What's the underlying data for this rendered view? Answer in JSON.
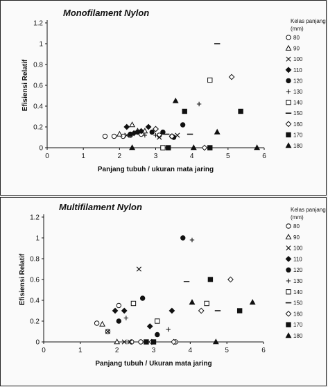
{
  "chart_data": [
    {
      "type": "scatter",
      "title": "Monofilament Nylon",
      "xlabel": "Panjang tubuh / ukuran mata jaring",
      "ylabel": "Efisiensi Relatif",
      "xlim": [
        0,
        6
      ],
      "ylim": [
        0,
        1.2
      ],
      "xticks": [
        "0",
        "1",
        "2",
        "3",
        "4",
        "5",
        "6"
      ],
      "yticks": [
        "0",
        "0.2",
        "0.4",
        "0.6",
        "0.8",
        "1",
        "1.2"
      ],
      "legend_title": [
        "Kelas panjang",
        "(mm)"
      ],
      "legend_position": "right",
      "grid": false,
      "series": [
        {
          "name": "80",
          "marker": "circle-open",
          "points": [
            [
              1.6,
              0.11
            ],
            [
              1.85,
              0.11
            ],
            [
              2.1,
              0.11
            ],
            [
              2.3,
              0.12
            ],
            [
              2.6,
              0.13
            ],
            [
              3.1,
              0.12
            ],
            [
              3.45,
              0.11
            ]
          ]
        },
        {
          "name": "90",
          "marker": "triangle-open",
          "points": [
            [
              2.0,
              0.13
            ],
            [
              2.35,
              0.22
            ],
            [
              2.5,
              0.16
            ],
            [
              2.7,
              0.16
            ]
          ]
        },
        {
          "name": "100",
          "marker": "x",
          "points": [
            [
              2.2,
              0.12
            ],
            [
              3.1,
              0.1
            ],
            [
              3.6,
              0.12
            ]
          ]
        },
        {
          "name": "110",
          "marker": "diamond-filled",
          "points": [
            [
              2.2,
              0.2
            ],
            [
              2.4,
              0.14
            ],
            [
              2.6,
              0.16
            ],
            [
              2.8,
              0.2
            ],
            [
              3.0,
              0.18
            ]
          ]
        },
        {
          "name": "120",
          "marker": "circle-filled",
          "points": [
            [
              2.3,
              0.13
            ],
            [
              2.5,
              0.15
            ],
            [
              2.9,
              0.15
            ],
            [
              3.2,
              0.15
            ],
            [
              3.5,
              0.1
            ],
            [
              3.75,
              0.22
            ]
          ]
        },
        {
          "name": "130",
          "marker": "plus",
          "points": [
            [
              2.7,
              0.12
            ],
            [
              3.0,
              0.12
            ],
            [
              4.2,
              0.42
            ]
          ]
        },
        {
          "name": "140",
          "marker": "square-open",
          "points": [
            [
              3.2,
              0.0
            ],
            [
              4.5,
              0.65
            ]
          ]
        },
        {
          "name": "150",
          "marker": "dash",
          "points": [
            [
              3.3,
              0.13
            ],
            [
              3.95,
              0.13
            ],
            [
              4.7,
              1.0
            ]
          ]
        },
        {
          "name": "160",
          "marker": "diamond-open",
          "points": [
            [
              3.0,
              0.18
            ],
            [
              3.45,
              0.11
            ],
            [
              4.35,
              0.0
            ],
            [
              5.1,
              0.68
            ]
          ]
        },
        {
          "name": "170",
          "marker": "square-filled",
          "points": [
            [
              3.35,
              0.0
            ],
            [
              3.8,
              0.35
            ],
            [
              4.5,
              0.0
            ],
            [
              5.35,
              0.35
            ]
          ]
        },
        {
          "name": "180",
          "marker": "triangle-filled",
          "points": [
            [
              2.35,
              0.0
            ],
            [
              3.55,
              0.45
            ],
            [
              4.05,
              0.0
            ],
            [
              4.7,
              0.15
            ],
            [
              5.8,
              0.0
            ]
          ]
        }
      ]
    },
    {
      "type": "scatter",
      "title": "Multifilament Nylon",
      "xlabel": "Panjang tubuh / Ukuran mata jaring",
      "ylabel": "Efisiensi Relatif",
      "xlim": [
        0,
        6
      ],
      "ylim": [
        0,
        1.2
      ],
      "xticks": [
        "0",
        "1",
        "2",
        "3",
        "4",
        "5",
        "6"
      ],
      "yticks": [
        "0",
        "0.2",
        "0.4",
        "0.6",
        "0.8",
        "1",
        "1.2"
      ],
      "legend_title": [
        "Kelas panjang",
        "(mm)"
      ],
      "legend_position": "right",
      "grid": false,
      "series": [
        {
          "name": "80",
          "marker": "circle-open",
          "points": [
            [
              1.45,
              0.18
            ],
            [
              1.75,
              0.1
            ],
            [
              2.05,
              0.35
            ],
            [
              2.4,
              0.0
            ],
            [
              2.65,
              0.0
            ],
            [
              3.6,
              0.0
            ]
          ]
        },
        {
          "name": "90",
          "marker": "triangle-open",
          "points": [
            [
              1.6,
              0.17
            ],
            [
              2.0,
              0.0
            ]
          ]
        },
        {
          "name": "100",
          "marker": "x",
          "points": [
            [
              1.75,
              0.1
            ],
            [
              2.2,
              0.0
            ],
            [
              2.35,
              0.0
            ],
            [
              2.6,
              0.7
            ]
          ]
        },
        {
          "name": "110",
          "marker": "diamond-filled",
          "points": [
            [
              1.95,
              0.3
            ],
            [
              2.2,
              0.3
            ],
            [
              2.9,
              0.15
            ],
            [
              3.5,
              0.3
            ]
          ]
        },
        {
          "name": "120",
          "marker": "circle-filled",
          "points": [
            [
              2.05,
              0.2
            ],
            [
              2.7,
              0.42
            ],
            [
              3.1,
              0.07
            ],
            [
              3.8,
              1.0
            ]
          ]
        },
        {
          "name": "130",
          "marker": "plus",
          "points": [
            [
              2.25,
              0.23
            ],
            [
              3.4,
              0.12
            ],
            [
              4.05,
              0.98
            ]
          ]
        },
        {
          "name": "140",
          "marker": "square-open",
          "points": [
            [
              2.45,
              0.37
            ],
            [
              3.1,
              0.2
            ],
            [
              4.45,
              0.37
            ]
          ]
        },
        {
          "name": "150",
          "marker": "dash",
          "points": [
            [
              3.9,
              0.58
            ],
            [
              4.75,
              0.3
            ]
          ]
        },
        {
          "name": "160",
          "marker": "diamond-open",
          "points": [
            [
              2.95,
              0.0
            ],
            [
              3.55,
              0.0
            ],
            [
              4.3,
              0.3
            ],
            [
              5.1,
              0.6
            ]
          ]
        },
        {
          "name": "170",
          "marker": "square-filled",
          "points": [
            [
              2.8,
              0.0
            ],
            [
              3.0,
              0.0
            ],
            [
              4.55,
              0.6
            ],
            [
              5.35,
              0.3
            ]
          ]
        },
        {
          "name": "180",
          "marker": "triangle-filled",
          "points": [
            [
              4.05,
              0.38
            ],
            [
              4.7,
              0.0
            ],
            [
              5.7,
              0.38
            ]
          ]
        }
      ]
    }
  ]
}
